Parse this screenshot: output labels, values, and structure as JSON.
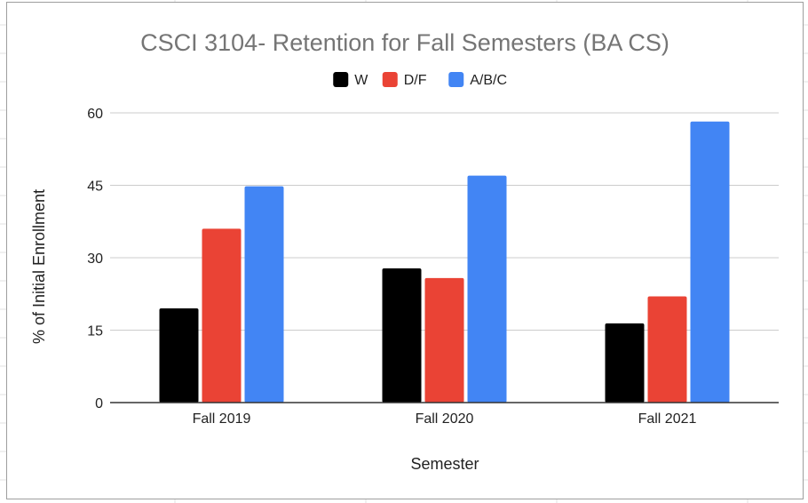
{
  "chart_data": {
    "type": "bar",
    "title": "CSCI 3104- Retention for Fall Semesters (BA CS)",
    "xlabel": "Semester",
    "ylabel": "% of Initial Enrollment",
    "categories": [
      "Fall 2019",
      "Fall 2020",
      "Fall 2021"
    ],
    "series": [
      {
        "name": "W",
        "color": "#000000",
        "values": [
          19.5,
          27.8,
          16.4
        ]
      },
      {
        "name": "D/F",
        "color": "#ea4335",
        "values": [
          36.0,
          25.8,
          22.0
        ]
      },
      {
        "name": "A/B/C",
        "color": "#4285f4",
        "values": [
          44.8,
          47.0,
          58.2
        ]
      }
    ],
    "ylim": [
      0,
      60
    ],
    "yticks": [
      "0",
      "15",
      "30",
      "45",
      "60"
    ],
    "grid": true,
    "legend": "top"
  }
}
